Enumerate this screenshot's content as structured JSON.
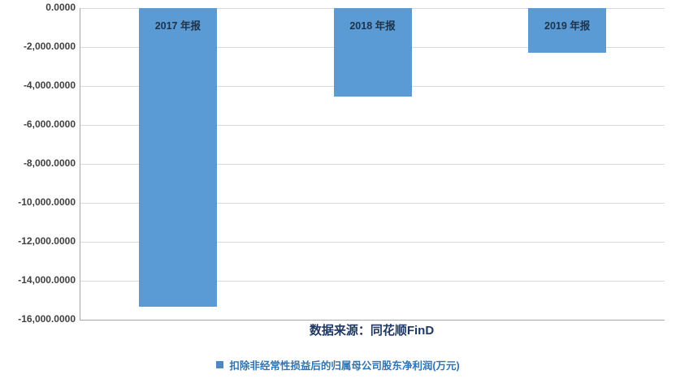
{
  "chart_data": {
    "type": "bar",
    "categories": [
      "2017 年报",
      "2018 年报",
      "2019 年报"
    ],
    "series": [
      {
        "name": "扣除非经常性损益后的归属母公司股东净利润(万元)",
        "values": [
          -15330,
          -4540,
          -2290
        ]
      }
    ],
    "title": "",
    "xlabel": "",
    "ylabel": "",
    "ylim": [
      -16000,
      0
    ],
    "y_ticks": [
      "0.0000",
      "-2,000.0000",
      "-4,000.0000",
      "-6,000.0000",
      "-8,000.0000",
      "-10,000.0000",
      "-12,000.0000",
      "-14,000.0000",
      "-16,000.0000"
    ],
    "grid": true,
    "legend_position": "bottom",
    "bar_labels_inside_top": true,
    "source_note": "数据来源：同花顺FinD",
    "colors": {
      "bar": "#5B9BD5",
      "gridline": "#D9D9D9",
      "axis_line": "#A6A6A6",
      "tick_label": "#404040",
      "bar_label": "#1F3247",
      "source_text": "#1F3864",
      "legend_text": "#2E74B5",
      "legend_marker": "#4E87C6",
      "background": "#FFFFFF"
    }
  },
  "legend": {
    "marker_icon": "square-icon"
  }
}
